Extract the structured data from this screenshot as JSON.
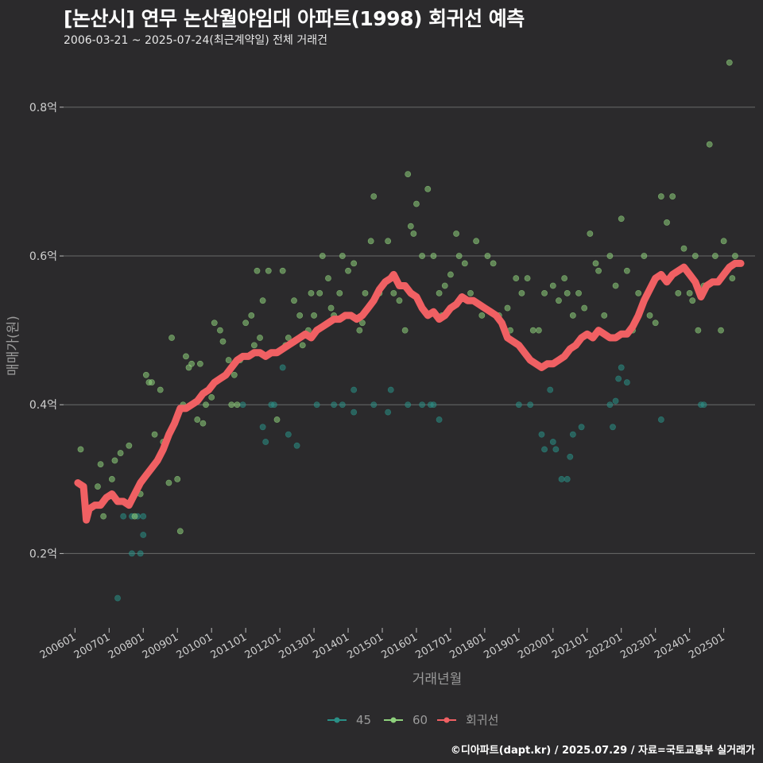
{
  "header": {
    "title": "[논산시] 연무 논산월야임대 아파트(1998) 회귀선 예측",
    "subtitle": "2006-03-21 ~ 2025-07-24(최근계약일) 전체 거래건"
  },
  "footer": {
    "credit": "©디아파트(dapt.kr) / 2025.07.29 / 자료=국토교통부 실거래가"
  },
  "colors": {
    "background": "#2b2a2c",
    "s45": "#2a8f86",
    "s60": "#8ed07c",
    "regression": "#f06063",
    "grid": "#6a6a6a"
  },
  "chart_data": {
    "type": "scatter",
    "xlabel": "거래년월",
    "ylabel": "매매가(원)",
    "x_range": [
      "2005-09",
      "2025-12"
    ],
    "ylim": [
      0.1,
      0.88
    ],
    "yticks": [
      0.2,
      0.4,
      0.6,
      0.8
    ],
    "ytick_labels": [
      "0.2억",
      "0.4억",
      "0.6억",
      "0.8억"
    ],
    "xticks": [
      "2006-01",
      "2007-01",
      "2008-01",
      "2009-01",
      "2010-01",
      "2011-01",
      "2012-01",
      "2013-01",
      "2014-01",
      "2015-01",
      "2016-01",
      "2017-01",
      "2018-01",
      "2019-01",
      "2020-01",
      "2021-01",
      "2022-01",
      "2023-01",
      "2024-01",
      "2025-01"
    ],
    "xtick_labels": [
      "200601",
      "200701",
      "200801",
      "200901",
      "201001",
      "201101",
      "201201",
      "201301",
      "201401",
      "201501",
      "201601",
      "201701",
      "201801",
      "201901",
      "202001",
      "202101",
      "202201",
      "202301",
      "202401",
      "202501"
    ],
    "grid": true,
    "legend_position": "bottom",
    "legend": [
      "45",
      "60",
      "회귀선"
    ],
    "series": [
      {
        "name": "45",
        "marker": "point",
        "points": [
          [
            "2007-04",
            0.14
          ],
          [
            "2007-11",
            0.25
          ],
          [
            "2007-09",
            0.25
          ],
          [
            "2007-06",
            0.25
          ],
          [
            "2007-12",
            0.2
          ],
          [
            "2008-01",
            0.25
          ],
          [
            "2008-01",
            0.225
          ],
          [
            "2007-09",
            0.2
          ],
          [
            "2011-07",
            0.37
          ],
          [
            "2011-08",
            0.35
          ],
          [
            "2011-11",
            0.4
          ],
          [
            "2012-04",
            0.36
          ],
          [
            "2012-02",
            0.45
          ],
          [
            "2011-10",
            0.4
          ],
          [
            "2012-07",
            0.345
          ],
          [
            "2010-12",
            0.4
          ],
          [
            "2013-02",
            0.4
          ],
          [
            "2013-08",
            0.4
          ],
          [
            "2013-11",
            0.4
          ],
          [
            "2014-03",
            0.39
          ],
          [
            "2014-03",
            0.42
          ],
          [
            "2014-10",
            0.4
          ],
          [
            "2015-03",
            0.39
          ],
          [
            "2015-04",
            0.42
          ],
          [
            "2015-10",
            0.4
          ],
          [
            "2016-03",
            0.4
          ],
          [
            "2016-06",
            0.4
          ],
          [
            "2016-07",
            0.4
          ],
          [
            "2016-09",
            0.38
          ],
          [
            "2019-01",
            0.4
          ],
          [
            "2019-05",
            0.4
          ],
          [
            "2019-09",
            0.36
          ],
          [
            "2019-10",
            0.34
          ],
          [
            "2019-12",
            0.42
          ],
          [
            "2020-01",
            0.35
          ],
          [
            "2020-02",
            0.34
          ],
          [
            "2020-04",
            0.3
          ],
          [
            "2020-06",
            0.3
          ],
          [
            "2020-07",
            0.33
          ],
          [
            "2020-08",
            0.36
          ],
          [
            "2021-09",
            0.4
          ],
          [
            "2021-10",
            0.37
          ],
          [
            "2021-12",
            0.435
          ],
          [
            "2022-01",
            0.45
          ],
          [
            "2022-03",
            0.43
          ],
          [
            "2023-03",
            0.38
          ],
          [
            "2024-05",
            0.4
          ],
          [
            "2024-06",
            0.4
          ],
          [
            "2021-11",
            0.405
          ],
          [
            "2020-11",
            0.37
          ]
        ]
      },
      {
        "name": "60",
        "marker": "point",
        "points": [
          [
            "2006-03",
            0.34
          ],
          [
            "2006-09",
            0.29
          ],
          [
            "2006-10",
            0.32
          ],
          [
            "2006-11",
            0.25
          ],
          [
            "2007-02",
            0.3
          ],
          [
            "2007-03",
            0.325
          ],
          [
            "2007-05",
            0.335
          ],
          [
            "2007-08",
            0.345
          ],
          [
            "2007-10",
            0.25
          ],
          [
            "2007-12",
            0.28
          ],
          [
            "2008-02",
            0.44
          ],
          [
            "2008-03",
            0.43
          ],
          [
            "2008-04",
            0.43
          ],
          [
            "2008-05",
            0.36
          ],
          [
            "2008-07",
            0.42
          ],
          [
            "2008-08",
            0.35
          ],
          [
            "2008-10",
            0.295
          ],
          [
            "2008-11",
            0.49
          ],
          [
            "2009-01",
            0.3
          ],
          [
            "2009-02",
            0.23
          ],
          [
            "2009-03",
            0.4
          ],
          [
            "2009-04",
            0.465
          ],
          [
            "2009-05",
            0.45
          ],
          [
            "2009-06",
            0.455
          ],
          [
            "2009-08",
            0.38
          ],
          [
            "2009-09",
            0.455
          ],
          [
            "2009-10",
            0.375
          ],
          [
            "2009-11",
            0.4
          ],
          [
            "2010-01",
            0.41
          ],
          [
            "2010-02",
            0.51
          ],
          [
            "2010-04",
            0.5
          ],
          [
            "2010-05",
            0.485
          ],
          [
            "2010-07",
            0.46
          ],
          [
            "2010-09",
            0.44
          ],
          [
            "2010-10",
            0.4
          ],
          [
            "2010-11",
            0.46
          ],
          [
            "2011-01",
            0.51
          ],
          [
            "2011-03",
            0.52
          ],
          [
            "2011-05",
            0.58
          ],
          [
            "2011-06",
            0.49
          ],
          [
            "2011-07",
            0.54
          ],
          [
            "2011-09",
            0.58
          ],
          [
            "2011-11",
            0.47
          ],
          [
            "2011-12",
            0.38
          ],
          [
            "2012-02",
            0.58
          ],
          [
            "2012-04",
            0.49
          ],
          [
            "2012-06",
            0.54
          ],
          [
            "2012-08",
            0.52
          ],
          [
            "2012-09",
            0.48
          ],
          [
            "2012-10",
            0.495
          ],
          [
            "2012-11",
            0.5
          ],
          [
            "2012-12",
            0.55
          ],
          [
            "2013-01",
            0.52
          ],
          [
            "2013-03",
            0.55
          ],
          [
            "2013-04",
            0.6
          ],
          [
            "2013-06",
            0.57
          ],
          [
            "2013-08",
            0.52
          ],
          [
            "2013-10",
            0.55
          ],
          [
            "2013-11",
            0.6
          ],
          [
            "2014-01",
            0.58
          ],
          [
            "2014-03",
            0.59
          ],
          [
            "2014-05",
            0.5
          ],
          [
            "2014-07",
            0.55
          ],
          [
            "2014-09",
            0.62
          ],
          [
            "2014-10",
            0.68
          ],
          [
            "2014-12",
            0.55
          ],
          [
            "2015-03",
            0.62
          ],
          [
            "2015-05",
            0.55
          ],
          [
            "2015-07",
            0.54
          ],
          [
            "2015-09",
            0.5
          ],
          [
            "2015-10",
            0.71
          ],
          [
            "2015-11",
            0.64
          ],
          [
            "2015-12",
            0.63
          ],
          [
            "2016-01",
            0.67
          ],
          [
            "2016-03",
            0.6
          ],
          [
            "2016-05",
            0.69
          ],
          [
            "2016-07",
            0.6
          ],
          [
            "2016-09",
            0.55
          ],
          [
            "2016-11",
            0.56
          ],
          [
            "2017-01",
            0.575
          ],
          [
            "2017-03",
            0.63
          ],
          [
            "2017-04",
            0.6
          ],
          [
            "2017-06",
            0.59
          ],
          [
            "2017-08",
            0.55
          ],
          [
            "2017-10",
            0.62
          ],
          [
            "2017-12",
            0.52
          ],
          [
            "2018-02",
            0.6
          ],
          [
            "2018-04",
            0.59
          ],
          [
            "2018-06",
            0.52
          ],
          [
            "2018-09",
            0.53
          ],
          [
            "2018-10",
            0.5
          ],
          [
            "2018-12",
            0.57
          ],
          [
            "2019-02",
            0.55
          ],
          [
            "2019-04",
            0.57
          ],
          [
            "2019-06",
            0.5
          ],
          [
            "2019-08",
            0.5
          ],
          [
            "2019-10",
            0.55
          ],
          [
            "2020-01",
            0.56
          ],
          [
            "2020-03",
            0.54
          ],
          [
            "2020-05",
            0.57
          ],
          [
            "2020-06",
            0.55
          ],
          [
            "2020-08",
            0.52
          ],
          [
            "2020-10",
            0.55
          ],
          [
            "2020-12",
            0.53
          ],
          [
            "2021-02",
            0.63
          ],
          [
            "2021-04",
            0.59
          ],
          [
            "2021-05",
            0.58
          ],
          [
            "2021-07",
            0.52
          ],
          [
            "2021-09",
            0.6
          ],
          [
            "2021-11",
            0.56
          ],
          [
            "2022-01",
            0.65
          ],
          [
            "2022-03",
            0.58
          ],
          [
            "2022-05",
            0.5
          ],
          [
            "2022-07",
            0.55
          ],
          [
            "2022-09",
            0.6
          ],
          [
            "2022-11",
            0.52
          ],
          [
            "2023-01",
            0.51
          ],
          [
            "2023-03",
            0.68
          ],
          [
            "2023-05",
            0.645
          ],
          [
            "2023-07",
            0.68
          ],
          [
            "2023-09",
            0.55
          ],
          [
            "2023-11",
            0.61
          ],
          [
            "2024-01",
            0.55
          ],
          [
            "2024-03",
            0.6
          ],
          [
            "2024-04",
            0.5
          ],
          [
            "2024-06",
            0.56
          ],
          [
            "2024-08",
            0.75
          ],
          [
            "2024-10",
            0.6
          ],
          [
            "2024-12",
            0.5
          ],
          [
            "2025-01",
            0.62
          ],
          [
            "2025-03",
            0.86
          ],
          [
            "2025-04",
            0.57
          ],
          [
            "2025-05",
            0.6
          ],
          [
            "2024-02",
            0.54
          ],
          [
            "2016-10",
            0.52
          ],
          [
            "2014-06",
            0.51
          ],
          [
            "2013-07",
            0.53
          ],
          [
            "2012-03",
            0.48
          ],
          [
            "2011-04",
            0.48
          ],
          [
            "2010-08",
            0.4
          ]
        ]
      }
    ],
    "regression": [
      [
        "2006-02",
        0.295
      ],
      [
        "2006-04",
        0.29
      ],
      [
        "2006-05",
        0.245
      ],
      [
        "2006-06",
        0.26
      ],
      [
        "2006-08",
        0.265
      ],
      [
        "2006-10",
        0.265
      ],
      [
        "2006-12",
        0.275
      ],
      [
        "2007-02",
        0.28
      ],
      [
        "2007-04",
        0.27
      ],
      [
        "2007-06",
        0.27
      ],
      [
        "2007-08",
        0.265
      ],
      [
        "2007-10",
        0.28
      ],
      [
        "2007-12",
        0.295
      ],
      [
        "2008-02",
        0.305
      ],
      [
        "2008-04",
        0.315
      ],
      [
        "2008-06",
        0.325
      ],
      [
        "2008-08",
        0.34
      ],
      [
        "2008-10",
        0.36
      ],
      [
        "2008-12",
        0.375
      ],
      [
        "2009-02",
        0.395
      ],
      [
        "2009-04",
        0.395
      ],
      [
        "2009-06",
        0.4
      ],
      [
        "2009-08",
        0.405
      ],
      [
        "2009-10",
        0.415
      ],
      [
        "2009-12",
        0.42
      ],
      [
        "2010-02",
        0.43
      ],
      [
        "2010-04",
        0.435
      ],
      [
        "2010-06",
        0.44
      ],
      [
        "2010-08",
        0.45
      ],
      [
        "2010-10",
        0.46
      ],
      [
        "2010-12",
        0.465
      ],
      [
        "2011-02",
        0.465
      ],
      [
        "2011-04",
        0.47
      ],
      [
        "2011-06",
        0.47
      ],
      [
        "2011-08",
        0.465
      ],
      [
        "2011-10",
        0.47
      ],
      [
        "2011-12",
        0.47
      ],
      [
        "2012-02",
        0.475
      ],
      [
        "2012-04",
        0.48
      ],
      [
        "2012-06",
        0.485
      ],
      [
        "2012-08",
        0.49
      ],
      [
        "2012-10",
        0.495
      ],
      [
        "2012-12",
        0.49
      ],
      [
        "2013-02",
        0.5
      ],
      [
        "2013-04",
        0.505
      ],
      [
        "2013-06",
        0.51
      ],
      [
        "2013-08",
        0.515
      ],
      [
        "2013-10",
        0.515
      ],
      [
        "2013-12",
        0.52
      ],
      [
        "2014-02",
        0.52
      ],
      [
        "2014-04",
        0.515
      ],
      [
        "2014-06",
        0.52
      ],
      [
        "2014-08",
        0.53
      ],
      [
        "2014-10",
        0.54
      ],
      [
        "2014-12",
        0.555
      ],
      [
        "2015-02",
        0.565
      ],
      [
        "2015-04",
        0.57
      ],
      [
        "2015-05",
        0.575
      ],
      [
        "2015-07",
        0.56
      ],
      [
        "2015-09",
        0.56
      ],
      [
        "2015-11",
        0.55
      ],
      [
        "2016-01",
        0.545
      ],
      [
        "2016-03",
        0.53
      ],
      [
        "2016-05",
        0.52
      ],
      [
        "2016-07",
        0.525
      ],
      [
        "2016-09",
        0.515
      ],
      [
        "2016-11",
        0.52
      ],
      [
        "2017-01",
        0.53
      ],
      [
        "2017-03",
        0.535
      ],
      [
        "2017-05",
        0.545
      ],
      [
        "2017-07",
        0.54
      ],
      [
        "2017-09",
        0.54
      ],
      [
        "2017-11",
        0.535
      ],
      [
        "2018-01",
        0.53
      ],
      [
        "2018-03",
        0.525
      ],
      [
        "2018-05",
        0.52
      ],
      [
        "2018-07",
        0.51
      ],
      [
        "2018-09",
        0.49
      ],
      [
        "2018-11",
        0.485
      ],
      [
        "2019-01",
        0.48
      ],
      [
        "2019-03",
        0.47
      ],
      [
        "2019-05",
        0.46
      ],
      [
        "2019-07",
        0.455
      ],
      [
        "2019-09",
        0.45
      ],
      [
        "2019-11",
        0.455
      ],
      [
        "2020-01",
        0.455
      ],
      [
        "2020-03",
        0.46
      ],
      [
        "2020-05",
        0.465
      ],
      [
        "2020-07",
        0.475
      ],
      [
        "2020-09",
        0.48
      ],
      [
        "2020-11",
        0.49
      ],
      [
        "2021-01",
        0.495
      ],
      [
        "2021-03",
        0.49
      ],
      [
        "2021-05",
        0.5
      ],
      [
        "2021-07",
        0.495
      ],
      [
        "2021-09",
        0.49
      ],
      [
        "2021-11",
        0.49
      ],
      [
        "2022-01",
        0.495
      ],
      [
        "2022-03",
        0.495
      ],
      [
        "2022-05",
        0.505
      ],
      [
        "2022-07",
        0.52
      ],
      [
        "2022-09",
        0.54
      ],
      [
        "2022-11",
        0.555
      ],
      [
        "2023-01",
        0.57
      ],
      [
        "2023-03",
        0.575
      ],
      [
        "2023-05",
        0.565
      ],
      [
        "2023-07",
        0.575
      ],
      [
        "2023-09",
        0.58
      ],
      [
        "2023-11",
        0.585
      ],
      [
        "2024-01",
        0.575
      ],
      [
        "2024-03",
        0.565
      ],
      [
        "2024-05",
        0.545
      ],
      [
        "2024-07",
        0.56
      ],
      [
        "2024-09",
        0.565
      ],
      [
        "2024-11",
        0.565
      ],
      [
        "2025-01",
        0.575
      ],
      [
        "2025-03",
        0.585
      ],
      [
        "2025-05",
        0.59
      ],
      [
        "2025-07",
        0.59
      ]
    ]
  }
}
